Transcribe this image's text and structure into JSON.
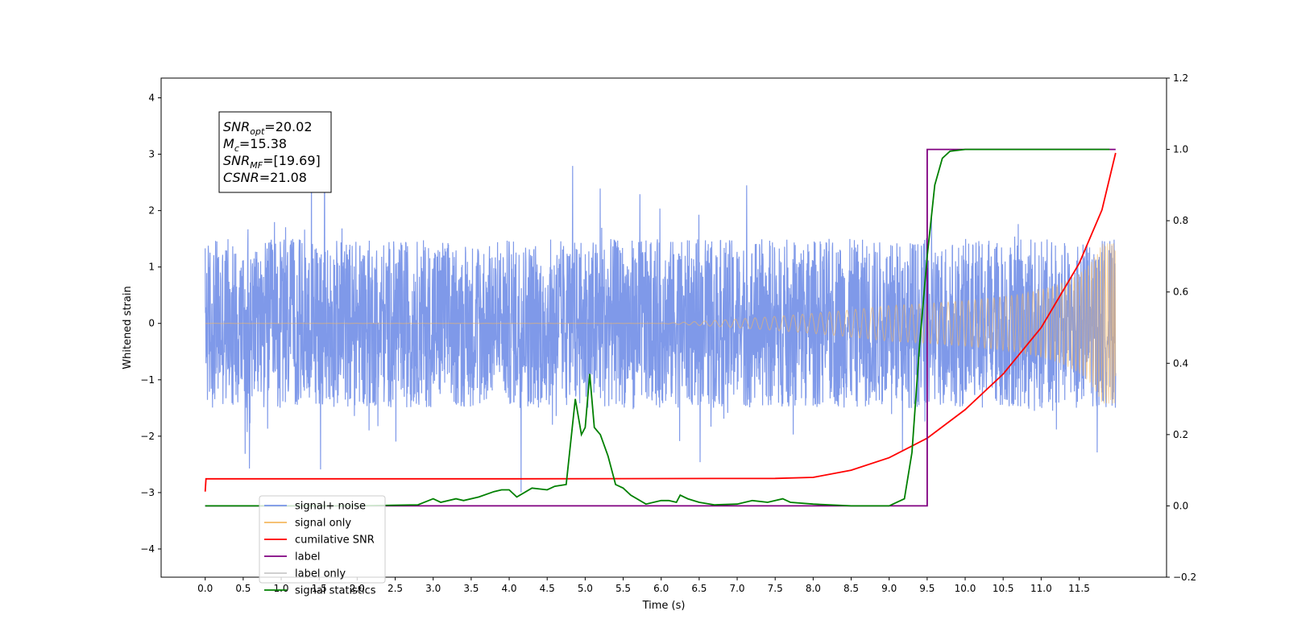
{
  "chart_data": {
    "type": "line",
    "title": "",
    "xlabel": "Time (s)",
    "ylabel": "Whitened strain",
    "y2label": "",
    "xlim": [
      -0.58,
      12.65
    ],
    "ylim": [
      -4.5,
      4.35
    ],
    "y2lim": [
      -0.2,
      1.2
    ],
    "xticks": [
      "0.0",
      "0.5",
      "1.0",
      "1.5",
      "2.0",
      "2.5",
      "3.0",
      "3.5",
      "4.0",
      "4.5",
      "5.0",
      "5.5",
      "6.0",
      "6.5",
      "7.0",
      "7.5",
      "8.0",
      "8.5",
      "9.0",
      "9.5",
      "10.0",
      "10.5",
      "11.0",
      "11.5"
    ],
    "yticks": [
      "4",
      "3",
      "2",
      "1",
      "0",
      "−1",
      "−2",
      "−3",
      "−4"
    ],
    "y2ticks": [
      "1.2",
      "1.0",
      "0.8",
      "0.6",
      "0.4",
      "0.2",
      "0.0",
      "−0.2"
    ],
    "grid": false,
    "legend_position": "lower-left",
    "annotation": {
      "lines": [
        {
          "base": "SNR",
          "sub": "opt",
          "rest": "=20.02"
        },
        {
          "base": "M",
          "sub": "c",
          "rest": "=15.38"
        },
        {
          "base": "SNR",
          "sub": "MF",
          "rest": "=[19.69]"
        },
        {
          "base": "CSNR",
          "sub": "",
          "rest": "=21.08"
        }
      ]
    },
    "series": [
      {
        "name": "signal+ noise",
        "color": "#7894e8",
        "axis": "left",
        "description": "dense noisy strain around zero, amplitude ~1.5 with spikes to ~3.9",
        "x_start": 0.0,
        "x_end": 11.98,
        "amplitude": 1.5
      },
      {
        "name": "signal only",
        "color": "#f5b860",
        "axis": "left",
        "description": "chirp waveform, amplitude growing from 0 to ~1.4 at 12 s",
        "x_start": 0.0,
        "x_end": 11.98
      },
      {
        "name": "cumilative SNR",
        "color": "#ff0000",
        "axis": "right",
        "x": [
          0.0,
          0.01,
          4.0,
          7.5,
          8.0,
          8.5,
          9.0,
          9.5,
          10.0,
          10.5,
          11.0,
          11.5,
          11.8,
          11.98
        ],
        "values": [
          0.04,
          0.076,
          0.076,
          0.077,
          0.08,
          0.1,
          0.135,
          0.19,
          0.27,
          0.37,
          0.5,
          0.68,
          0.83,
          0.99
        ]
      },
      {
        "name": "label",
        "color": "#800080",
        "axis": "right",
        "x": [
          0.0,
          9.5,
          9.5,
          11.98
        ],
        "values": [
          0.0,
          0.0,
          1.0,
          1.0
        ]
      },
      {
        "name": "signal statistics",
        "color": "#008000",
        "axis": "right",
        "x": [
          0.0,
          2.0,
          2.8,
          3.0,
          3.1,
          3.3,
          3.4,
          3.6,
          3.8,
          3.9,
          4.0,
          4.1,
          4.3,
          4.5,
          4.6,
          4.75,
          4.8,
          4.87,
          4.95,
          5.0,
          5.06,
          5.12,
          5.2,
          5.3,
          5.4,
          5.5,
          5.6,
          5.8,
          6.0,
          6.1,
          6.2,
          6.25,
          6.35,
          6.5,
          6.7,
          7.0,
          7.2,
          7.4,
          7.6,
          7.7,
          8.0,
          8.5,
          9.0,
          9.2,
          9.3,
          9.4,
          9.5,
          9.6,
          9.7,
          9.8,
          10.0,
          10.5,
          11.0,
          11.5,
          11.9
        ],
        "values": [
          0.0,
          0.0,
          0.003,
          0.02,
          0.01,
          0.02,
          0.015,
          0.025,
          0.04,
          0.045,
          0.045,
          0.025,
          0.05,
          0.045,
          0.055,
          0.06,
          0.16,
          0.3,
          0.2,
          0.22,
          0.37,
          0.22,
          0.2,
          0.14,
          0.06,
          0.05,
          0.03,
          0.005,
          0.015,
          0.015,
          0.01,
          0.03,
          0.02,
          0.01,
          0.003,
          0.005,
          0.015,
          0.01,
          0.02,
          0.01,
          0.005,
          0.0,
          0.0,
          0.02,
          0.15,
          0.45,
          0.7,
          0.9,
          0.975,
          0.995,
          1.0,
          1.0,
          1.0,
          1.0,
          1.0
        ]
      }
    ],
    "legend": [
      {
        "label": "signal+ noise",
        "color": "#7894e8"
      },
      {
        "label": "signal only",
        "color": "#f5b860"
      },
      {
        "label": "cumilative SNR",
        "color": "#ff0000"
      },
      {
        "label": "label",
        "color": "#800080"
      },
      {
        "label": "label only",
        "color": "#c8c8c8"
      },
      {
        "label": "signal statistics",
        "color": "#008000"
      }
    ]
  }
}
